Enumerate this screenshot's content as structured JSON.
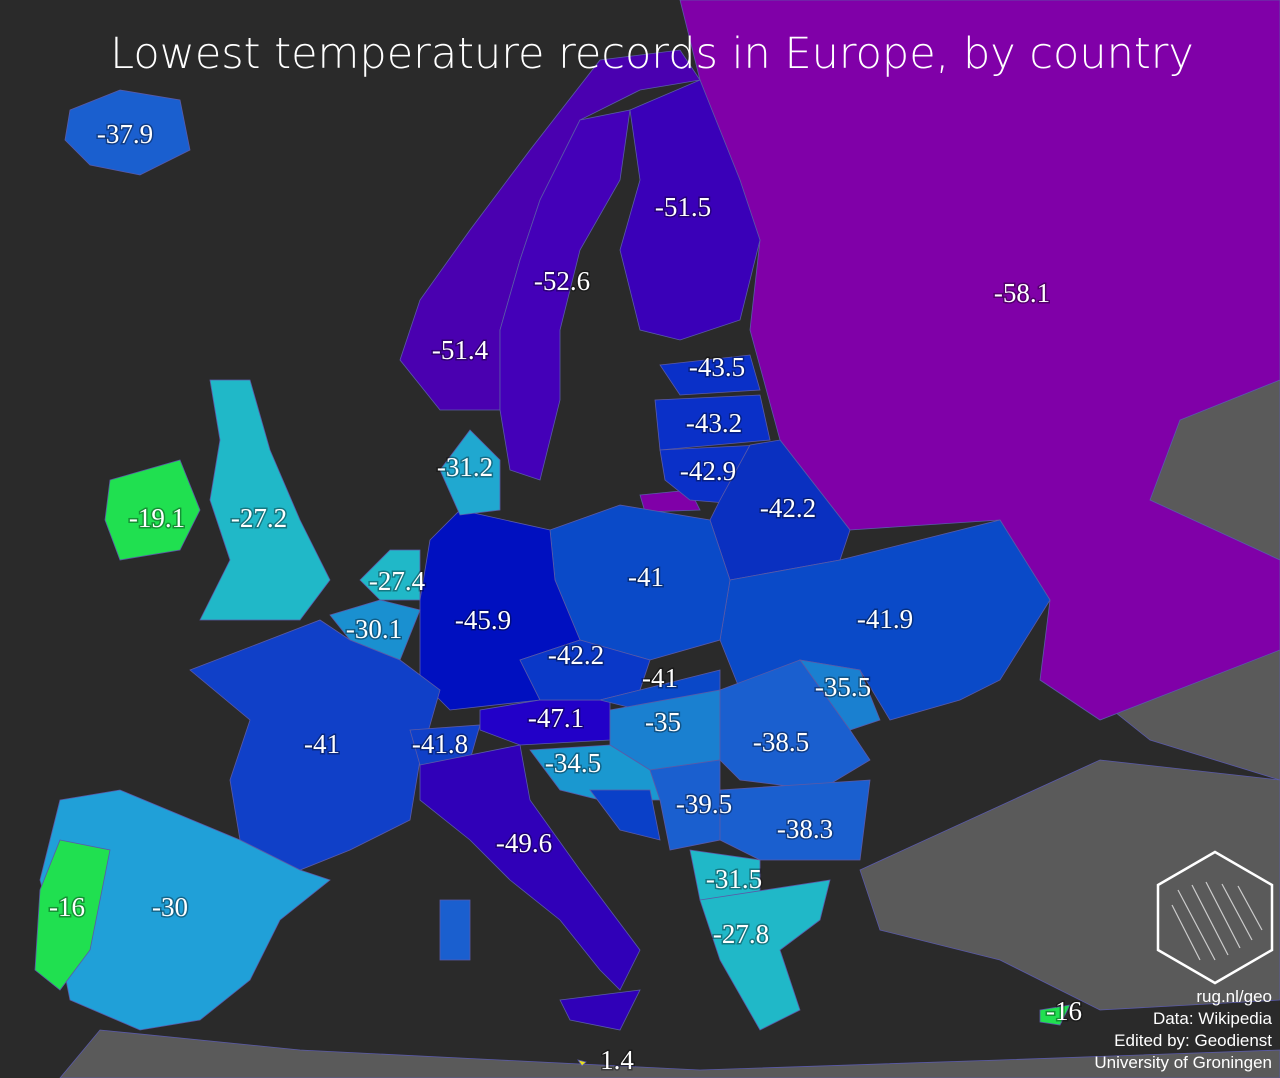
{
  "title": "Lowest temperature records in Europe, by country",
  "labels": [
    "-37.9",
    "-51.5",
    "-52.6",
    "-58.1",
    "-51.4",
    "-43.5",
    "-43.2",
    "-42.9",
    "-42.2",
    "-31.2",
    "-19.1",
    "-27.2",
    "-27.4",
    "-41",
    "-30.1",
    "-45.9",
    "-41.9",
    "-42.2",
    "-41",
    "-35.5",
    "-41",
    "-41.8",
    "-47.1",
    "-35",
    "-38.5",
    "-34.5",
    "-39.5",
    "-38.3",
    "-49.6",
    "-31.5",
    "-27.8",
    "-16",
    "-30",
    "-16",
    "1.4"
  ],
  "credits": [
    "rug.nl/geo",
    "Data: Wikipedia",
    "Edited by: Geodienst",
    "University of Groningen"
  ]
}
